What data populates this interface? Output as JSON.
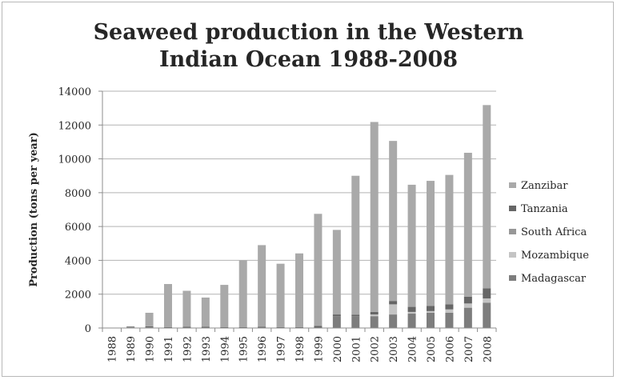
{
  "chart_data": {
    "type": "bar",
    "stacked": true,
    "title": "Seaweed production in the Western Indian Ocean 1988-2008",
    "title_lines": [
      "Seaweed production in the Western",
      "Indian Ocean 1988-2008"
    ],
    "xlabel": "",
    "ylabel": "Production (tons per year)",
    "ylim": [
      0,
      14000
    ],
    "yticks": [
      0,
      2000,
      4000,
      6000,
      8000,
      10000,
      12000,
      14000
    ],
    "grid": true,
    "legend_position": "right",
    "categories": [
      "1988",
      "1989",
      "1990",
      "1991",
      "1992",
      "1993",
      "1994",
      "1995",
      "1996",
      "1997",
      "1998",
      "1999",
      "2000",
      "2001",
      "2002",
      "2003",
      "2004",
      "2005",
      "2006",
      "2007",
      "2008"
    ],
    "series": [
      {
        "name": "Madagascar",
        "color": "#7d7d7d",
        "values": [
          0,
          40,
          40,
          0,
          0,
          0,
          0,
          0,
          0,
          0,
          0,
          0,
          700,
          700,
          700,
          800,
          850,
          900,
          900,
          1200,
          1500
        ]
      },
      {
        "name": "Mozambique",
        "color": "#c4c4c4",
        "values": [
          0,
          0,
          0,
          0,
          0,
          0,
          0,
          0,
          0,
          0,
          0,
          0,
          0,
          0,
          100,
          600,
          100,
          100,
          200,
          250,
          250
        ]
      },
      {
        "name": "South Africa",
        "color": "#979797",
        "values": [
          0,
          0,
          0,
          0,
          0,
          0,
          0,
          0,
          0,
          0,
          0,
          0,
          0,
          0,
          0,
          0,
          0,
          0,
          0,
          0,
          0
        ]
      },
      {
        "name": "Tanzania",
        "color": "#666666",
        "values": [
          0,
          40,
          60,
          60,
          70,
          70,
          60,
          60,
          80,
          60,
          60,
          120,
          100,
          80,
          150,
          200,
          300,
          300,
          300,
          400,
          600
        ]
      },
      {
        "name": "Zanzibar",
        "color": "#a9a9a9",
        "values": [
          0,
          20,
          800,
          2540,
          2130,
          1730,
          2490,
          3940,
          4820,
          3740,
          4350,
          6630,
          5000,
          8220,
          11230,
          9460,
          7220,
          7400,
          7650,
          8510,
          10830
        ]
      }
    ]
  }
}
